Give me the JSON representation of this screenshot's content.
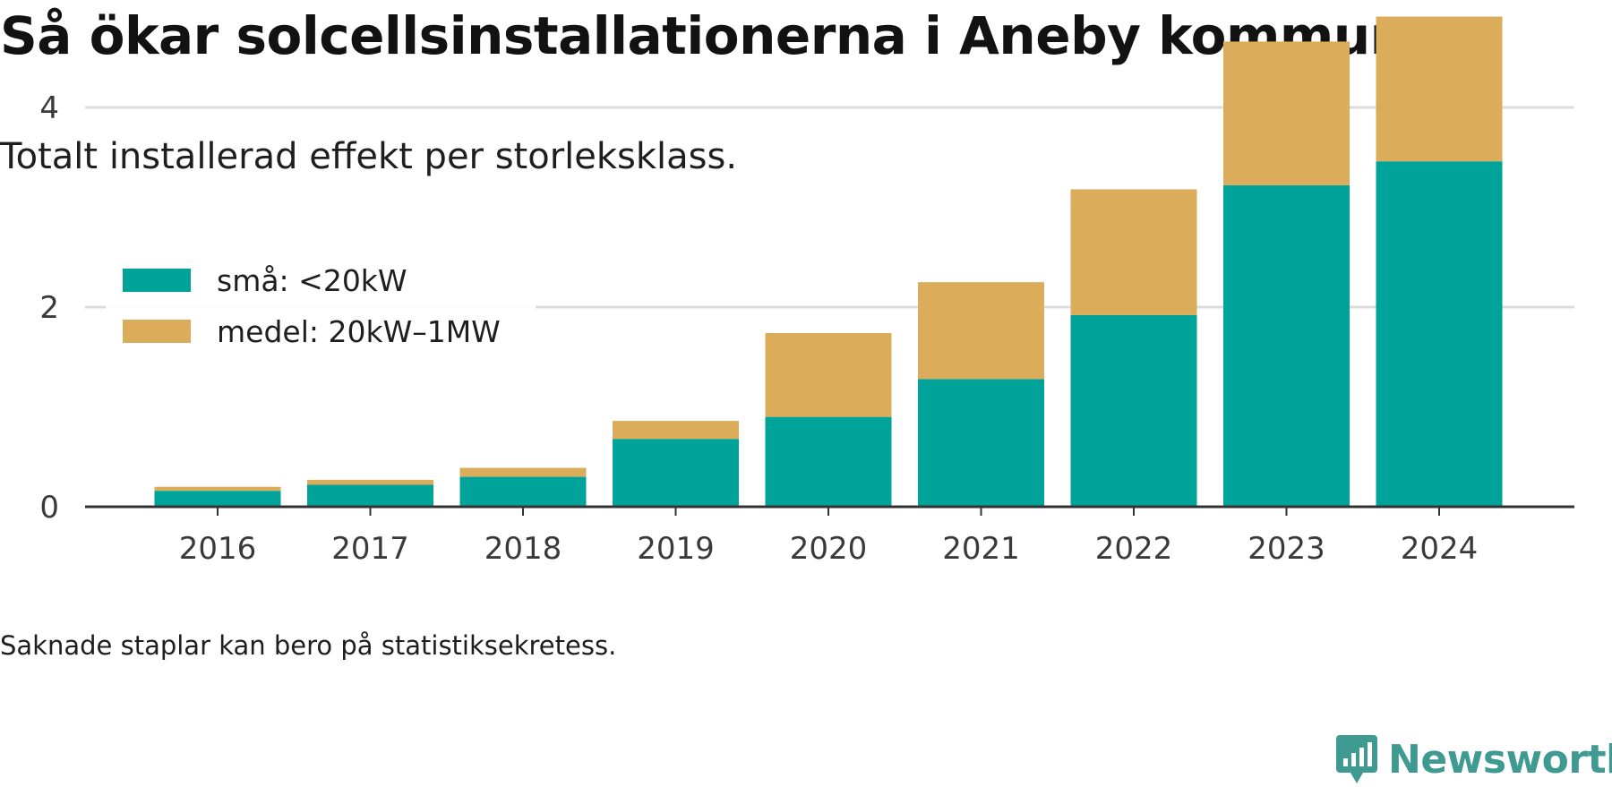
{
  "title": "Så ökar solcellsinstallationerna i Aneby kommun",
  "subtitle": "Totalt installerad effekt per storleksklass.",
  "footnote": "Saknade staplar kan bero på statistiksekretess.",
  "brand": {
    "name": "Newsworthy",
    "icon": "newsworthy-logo-icon",
    "color": "#3f9a92"
  },
  "chart_data": {
    "type": "bar",
    "stacked": true,
    "categories": [
      "2016",
      "2017",
      "2018",
      "2019",
      "2020",
      "2021",
      "2022",
      "2023",
      "2024"
    ],
    "series": [
      {
        "name": "små: <20kW",
        "color": "#00a39a",
        "values": [
          0.16,
          0.22,
          0.3,
          0.68,
          0.9,
          1.28,
          1.92,
          3.22,
          3.46
        ]
      },
      {
        "name": "medel: 20kW–1MW",
        "color": "#dbad5a",
        "values": [
          0.04,
          0.05,
          0.09,
          0.18,
          0.84,
          0.97,
          1.26,
          1.44,
          1.45
        ]
      }
    ],
    "yticks": [
      0,
      2,
      4
    ],
    "ylim": [
      0,
      5
    ],
    "xlabel": "",
    "ylabel": "",
    "grid": true,
    "legend_position": "top-left"
  }
}
